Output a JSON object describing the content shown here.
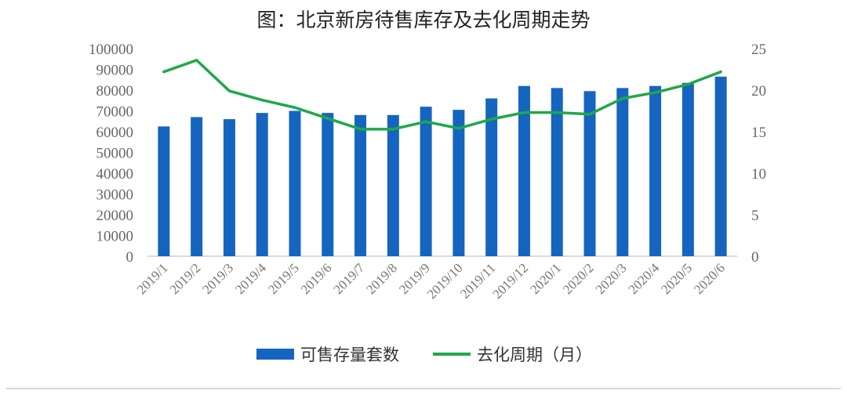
{
  "chart_data": {
    "type": "bar",
    "title": "图：北京新房待售库存及去化周期走势",
    "categories": [
      "2019/1",
      "2019/2",
      "2019/3",
      "2019/4",
      "2019/5",
      "2019/6",
      "2019/7",
      "2019/8",
      "2019/9",
      "2019/10",
      "2019/11",
      "2019/12",
      "2020/1",
      "2020/2",
      "2020/3",
      "2020/4",
      "2020/5",
      "2020/6"
    ],
    "series": [
      {
        "name": "可售存量套数",
        "type": "bar",
        "axis": "left",
        "color": "#1565C0",
        "values": [
          62500,
          67000,
          66000,
          69000,
          70000,
          69000,
          68000,
          68000,
          72000,
          70500,
          76000,
          82000,
          81000,
          79500,
          81000,
          82000,
          83500,
          86500
        ]
      },
      {
        "name": "去化周期（月）",
        "type": "line",
        "axis": "right",
        "color": "#1FA84A",
        "values": [
          22.2,
          23.6,
          19.9,
          18.8,
          17.9,
          16.6,
          15.3,
          15.3,
          16.2,
          15.4,
          16.5,
          17.3,
          17.3,
          17.1,
          19.0,
          19.7,
          20.7,
          22.2
        ]
      }
    ],
    "y_left": {
      "min": 0,
      "max": 100000,
      "ticks": [
        0,
        10000,
        20000,
        30000,
        40000,
        50000,
        60000,
        70000,
        80000,
        90000,
        100000
      ]
    },
    "y_right": {
      "min": 0,
      "max": 25,
      "ticks": [
        0,
        5,
        10,
        15,
        20,
        25
      ]
    },
    "grid": false,
    "legend_position": "bottom"
  }
}
